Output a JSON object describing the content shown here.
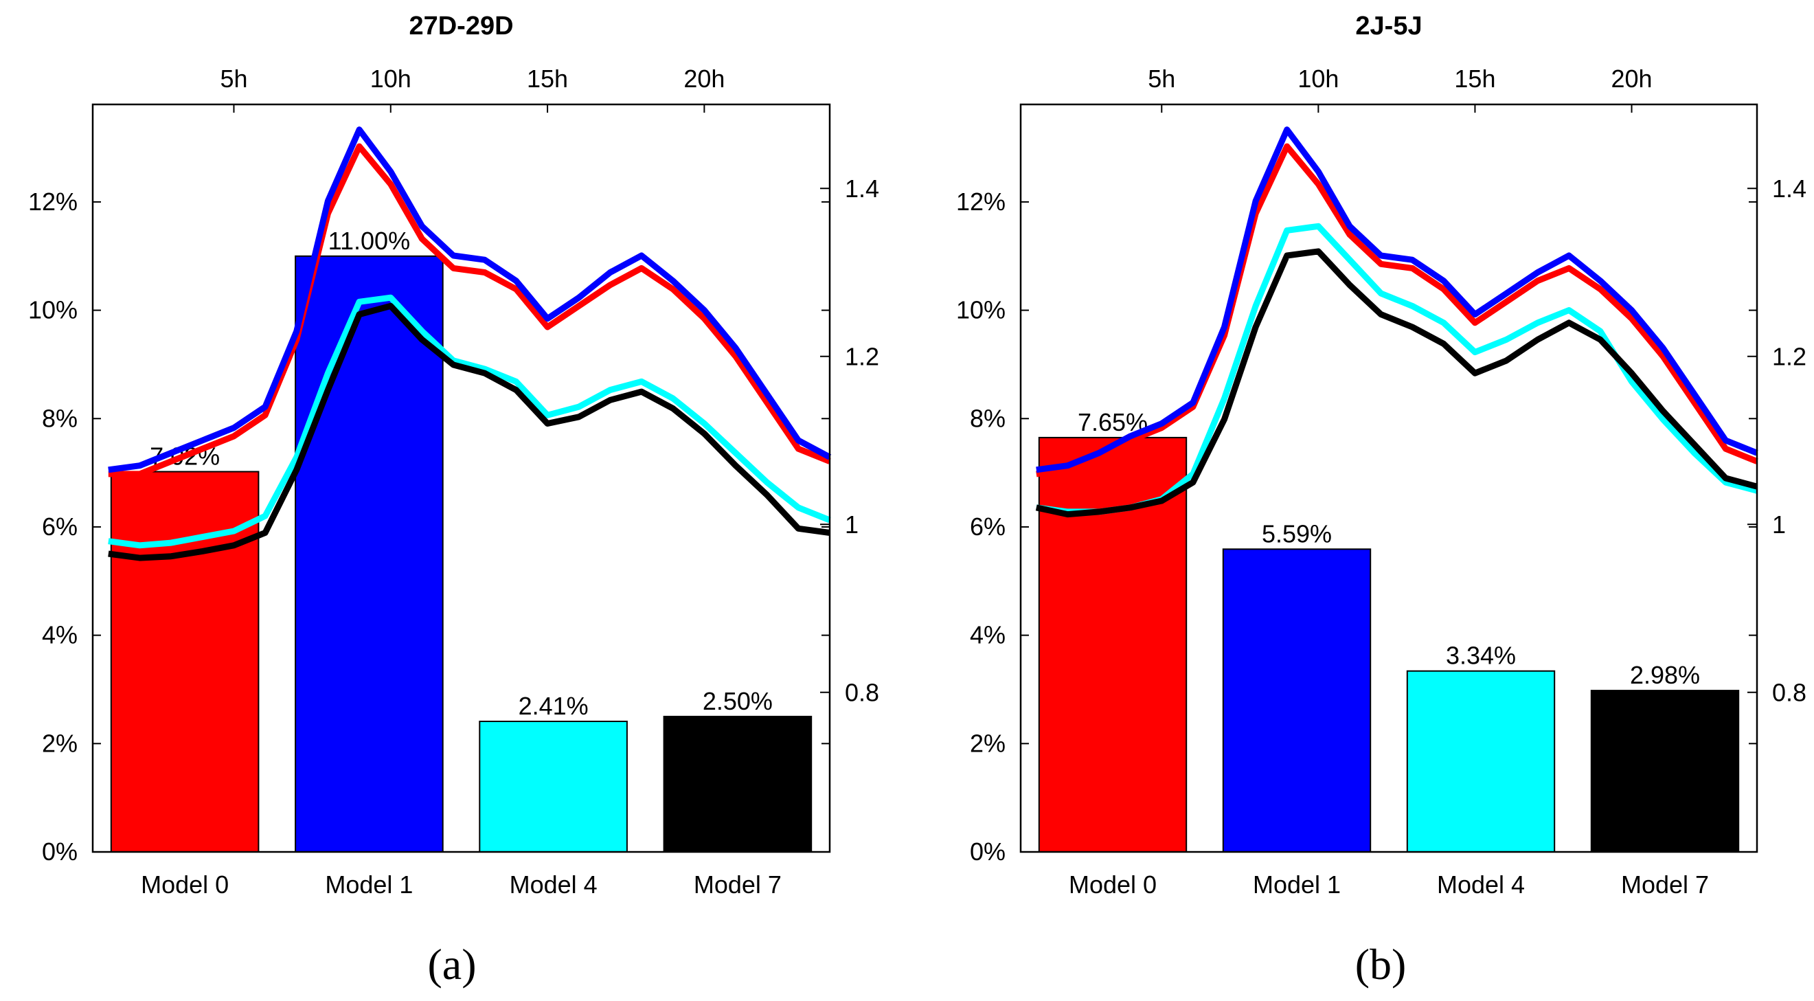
{
  "colors": {
    "Model 0": "#ff0000",
    "Model 1": "#0000ff",
    "Model 4": "#00ffff",
    "Model 7": "#000000"
  },
  "chart_data": [
    {
      "type": "bar",
      "title": "27D-29D",
      "panel_label": "(a)",
      "categories": [
        "Model 0",
        "Model 1",
        "Model 4",
        "Model 7"
      ],
      "values": [
        7.02,
        11.0,
        2.41,
        2.5
      ],
      "value_labels": [
        "7.02%",
        "11.00%",
        "2.41%",
        "2.50%"
      ],
      "ylim": [
        0,
        13.8
      ],
      "y_ticks": [
        0,
        2,
        4,
        6,
        8,
        10,
        12
      ],
      "y_tick_labels": [
        "0%",
        "2%",
        "4%",
        "6%",
        "8%",
        "10%",
        "12%"
      ],
      "overlay": {
        "type": "line",
        "x": [
          1,
          2,
          3,
          4,
          5,
          6,
          7,
          8,
          9,
          10,
          11,
          12,
          13,
          14,
          15,
          16,
          17,
          18,
          19,
          20,
          21,
          22,
          23,
          24
        ],
        "xlim": [
          0.5,
          24
        ],
        "x_ticks": [
          5,
          10,
          15,
          20
        ],
        "x_tick_labels": [
          "5h",
          "10h",
          "15h",
          "20h"
        ],
        "ylim": [
          0.61,
          1.5
        ],
        "y_ticks": [
          0.8,
          1,
          1.2,
          1.4
        ],
        "y_tick_labels": [
          "0.8",
          "1",
          "1.2",
          "1.4"
        ],
        "series": [
          {
            "key": "Model 0",
            "values": [
              1.06,
              1.06,
              1.075,
              1.09,
              1.105,
              1.13,
              1.22,
              1.37,
              1.45,
              1.405,
              1.34,
              1.305,
              1.3,
              1.28,
              1.235,
              1.26,
              1.285,
              1.305,
              1.28,
              1.245,
              1.2,
              1.145,
              1.09,
              1.075
            ]
          },
          {
            "key": "Model 1",
            "values": [
              1.065,
              1.07,
              1.085,
              1.1,
              1.115,
              1.14,
              1.23,
              1.385,
              1.47,
              1.42,
              1.355,
              1.32,
              1.315,
              1.29,
              1.245,
              1.27,
              1.3,
              1.32,
              1.29,
              1.255,
              1.21,
              1.155,
              1.1,
              1.08
            ]
          },
          {
            "key": "Model 4",
            "values": [
              0.98,
              0.975,
              0.978,
              0.985,
              0.992,
              1.01,
              1.08,
              1.18,
              1.265,
              1.27,
              1.23,
              1.195,
              1.185,
              1.17,
              1.13,
              1.14,
              1.16,
              1.17,
              1.15,
              1.12,
              1.085,
              1.05,
              1.02,
              1.005
            ]
          },
          {
            "key": "Model 7",
            "values": [
              0.965,
              0.96,
              0.962,
              0.968,
              0.975,
              0.99,
              1.065,
              1.16,
              1.25,
              1.26,
              1.22,
              1.19,
              1.18,
              1.16,
              1.12,
              1.128,
              1.148,
              1.158,
              1.138,
              1.108,
              1.07,
              1.035,
              0.995,
              0.99
            ]
          }
        ]
      }
    },
    {
      "type": "bar",
      "title": "2J-5J",
      "panel_label": "(b)",
      "categories": [
        "Model 0",
        "Model 1",
        "Model 4",
        "Model 7"
      ],
      "values": [
        7.65,
        5.59,
        3.34,
        2.98
      ],
      "value_labels": [
        "7.65%",
        "5.59%",
        "3.34%",
        "2.98%"
      ],
      "ylim": [
        0,
        13.8
      ],
      "y_ticks": [
        0,
        2,
        4,
        6,
        8,
        10,
        12
      ],
      "y_tick_labels": [
        "0%",
        "2%",
        "4%",
        "6%",
        "8%",
        "10%",
        "12%"
      ],
      "overlay": {
        "type": "line",
        "x": [
          1,
          2,
          3,
          4,
          5,
          6,
          7,
          8,
          9,
          10,
          11,
          12,
          13,
          14,
          15,
          16,
          17,
          18,
          19,
          20,
          21,
          22,
          23,
          24
        ],
        "xlim": [
          0.5,
          24
        ],
        "x_ticks": [
          5,
          10,
          15,
          20
        ],
        "x_tick_labels": [
          "5h",
          "10h",
          "15h",
          "20h"
        ],
        "ylim": [
          0.61,
          1.5
        ],
        "y_ticks": [
          0.8,
          1,
          1.2,
          1.4
        ],
        "y_tick_labels": [
          "0.8",
          "1",
          "1.2",
          "1.4"
        ],
        "series": [
          {
            "key": "Model 0",
            "values": [
              1.06,
              1.065,
              1.08,
              1.1,
              1.115,
              1.14,
              1.225,
              1.37,
              1.45,
              1.405,
              1.345,
              1.31,
              1.305,
              1.28,
              1.24,
              1.265,
              1.29,
              1.305,
              1.28,
              1.245,
              1.2,
              1.145,
              1.09,
              1.075
            ]
          },
          {
            "key": "Model 1",
            "values": [
              1.065,
              1.07,
              1.085,
              1.105,
              1.12,
              1.145,
              1.235,
              1.385,
              1.47,
              1.42,
              1.355,
              1.32,
              1.315,
              1.29,
              1.25,
              1.275,
              1.3,
              1.32,
              1.29,
              1.255,
              1.21,
              1.155,
              1.1,
              1.085
            ]
          },
          {
            "key": "Model 4",
            "values": [
              1.02,
              1.015,
              1.015,
              1.02,
              1.03,
              1.06,
              1.15,
              1.26,
              1.35,
              1.355,
              1.315,
              1.275,
              1.26,
              1.24,
              1.205,
              1.22,
              1.24,
              1.255,
              1.23,
              1.17,
              1.125,
              1.085,
              1.05,
              1.04
            ]
          },
          {
            "key": "Model 7",
            "values": [
              1.02,
              1.012,
              1.015,
              1.02,
              1.028,
              1.05,
              1.125,
              1.235,
              1.32,
              1.325,
              1.285,
              1.25,
              1.235,
              1.215,
              1.18,
              1.195,
              1.22,
              1.24,
              1.22,
              1.18,
              1.135,
              1.095,
              1.055,
              1.045
            ]
          }
        ]
      }
    }
  ]
}
